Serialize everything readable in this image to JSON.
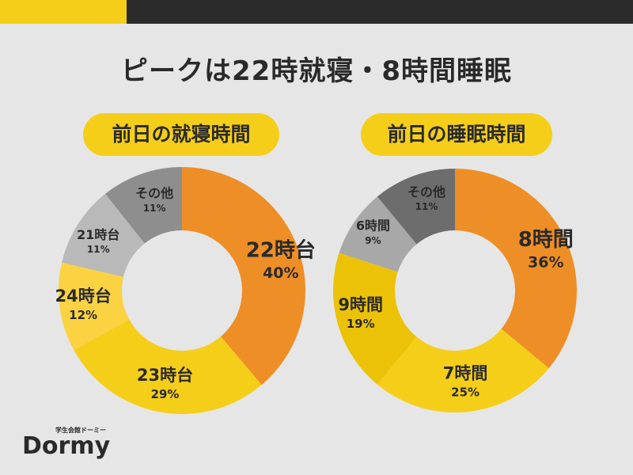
{
  "title": "ピークは22時就寝・8時間睡眠",
  "brand": {
    "name": "Dormy",
    "tagline": "学生会館ドーミー"
  },
  "chart_data": [
    {
      "type": "pie",
      "title": "前日の就寝時間",
      "categories": [
        "22時台",
        "23時台",
        "24時台",
        "21時台",
        "その他"
      ],
      "values": [
        40,
        29,
        12,
        11,
        11
      ],
      "labels": [
        "40%",
        "29%",
        "12%",
        "11%",
        "11%"
      ],
      "colors": [
        "#ee8e26",
        "#f5ce1a",
        "#fbd242",
        "#b9b9b9",
        "#8e8e8e"
      ]
    },
    {
      "type": "pie",
      "title": "前日の睡眠時間",
      "categories": [
        "8時間",
        "7時間",
        "9時間",
        "6時間",
        "その他"
      ],
      "values": [
        36,
        25,
        19,
        9,
        11
      ],
      "labels": [
        "36%",
        "25%",
        "19%",
        "9%",
        "11%"
      ],
      "colors": [
        "#ee8e26",
        "#f5ce1a",
        "#ecc209",
        "#a8a8a8",
        "#6d6d6d"
      ]
    }
  ]
}
